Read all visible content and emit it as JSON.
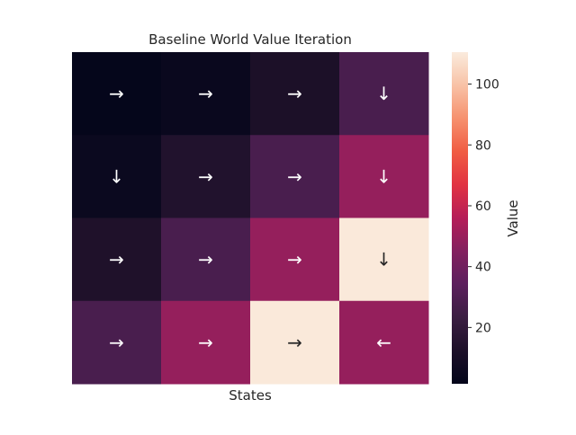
{
  "chart_data": {
    "type": "heatmap",
    "title": "Baseline World Value Iteration",
    "xlabel": "States",
    "ylabel": "",
    "colorbar_label": "Value",
    "colormap": "rocket",
    "vmin": 1.5,
    "vmax": 110.5,
    "colorbar_ticks": [
      20,
      40,
      60,
      80,
      100
    ],
    "grid": false,
    "values": [
      [
        2.3,
        4.5,
        12.0,
        28.0
      ],
      [
        5.0,
        14.0,
        28.0,
        49.0
      ],
      [
        13.0,
        28.0,
        49.0,
        110.0
      ],
      [
        28.0,
        49.0,
        110.0,
        49.0
      ]
    ],
    "annotations": [
      [
        "→",
        "→",
        "→",
        "↓"
      ],
      [
        "↓",
        "→",
        "→",
        "↓"
      ],
      [
        "→",
        "→",
        "→",
        "↓"
      ],
      [
        "→",
        "→",
        "→",
        "←"
      ]
    ]
  }
}
